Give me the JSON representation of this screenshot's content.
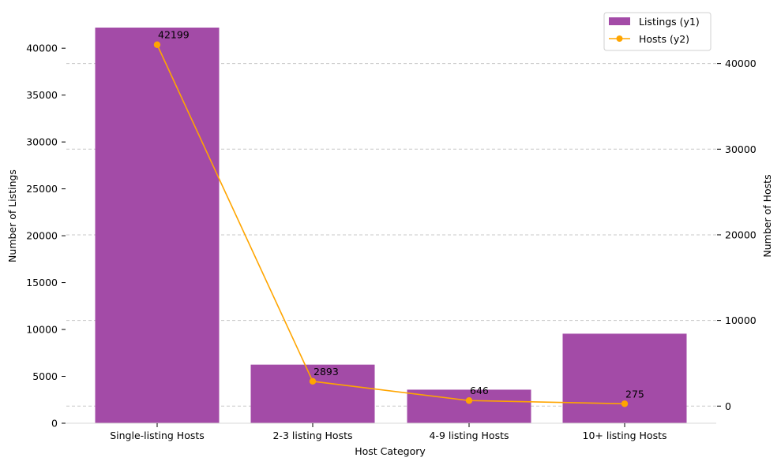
{
  "chart_data": {
    "type": "bar",
    "xlabel": "Host Category",
    "ylabel": "Number of Listings",
    "y2label": "Number of Hosts",
    "categories": [
      "Single-listing Hosts",
      "2-3 listing Hosts",
      "4-9 listing Hosts",
      "10+ listing Hosts"
    ],
    "series": [
      {
        "name": "Listings (y1)",
        "kind": "bar",
        "axis": "y1",
        "color": "#a34ba7",
        "values": [
          42199,
          6250,
          3580,
          9550
        ]
      },
      {
        "name": "Hosts (y2)",
        "kind": "line",
        "axis": "y2",
        "color": "#ffa500",
        "values": [
          42199,
          2893,
          646,
          275
        ]
      }
    ],
    "data_labels": [
      "42199",
      "2893",
      "646",
      "275"
    ],
    "ylim": [
      0,
      42200
    ],
    "y2lim": [
      -2000,
      44200
    ],
    "yticks": [
      0,
      5000,
      10000,
      15000,
      20000,
      25000,
      30000,
      35000,
      40000
    ],
    "y2ticks": [
      0,
      10000,
      20000,
      30000,
      40000
    ],
    "grid": "y2 dashed",
    "legend": "top-right"
  }
}
